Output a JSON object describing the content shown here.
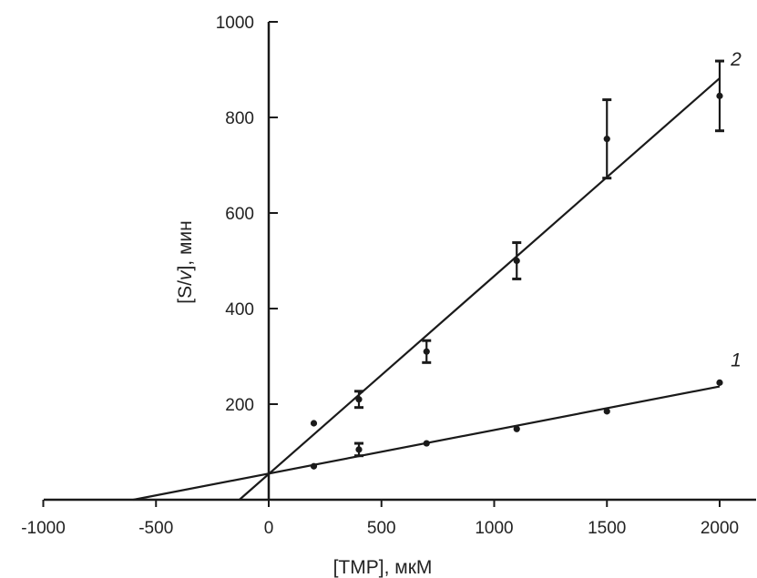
{
  "chart_data": {
    "type": "scatter",
    "xlabel": "[TMP], мкМ",
    "ylabel_parts": [
      "[S/",
      "v",
      "], мин"
    ],
    "xlim": [
      -1000,
      2150
    ],
    "ylim": [
      0,
      1000
    ],
    "xticks": [
      -1000,
      -500,
      0,
      500,
      1000,
      1500,
      2000
    ],
    "yticks": [
      200,
      400,
      600,
      800,
      1000
    ],
    "grid": false,
    "colors": {
      "ink": "#1a1a1a"
    },
    "series": [
      {
        "name": "1",
        "points": [
          {
            "x": 200,
            "y": 70
          },
          {
            "x": 200,
            "y": 160
          },
          {
            "x": 400,
            "y": 105,
            "err": 13
          },
          {
            "x": 700,
            "y": 118
          },
          {
            "x": 1100,
            "y": 148
          },
          {
            "x": 1500,
            "y": 185
          },
          {
            "x": 2000,
            "y": 245
          }
        ],
        "fit": {
          "x0": -600,
          "y0": 0,
          "x1": 2000,
          "y1": 237
        }
      },
      {
        "name": "2",
        "points": [
          {
            "x": 400,
            "y": 210,
            "err": 17
          },
          {
            "x": 700,
            "y": 310,
            "err": 23
          },
          {
            "x": 1100,
            "y": 500,
            "err": 38
          },
          {
            "x": 1500,
            "y": 755,
            "err": 82
          },
          {
            "x": 2000,
            "y": 845,
            "err": 73
          }
        ],
        "fit": {
          "x0": -130,
          "y0": 0,
          "x1": 2000,
          "y1": 882
        }
      }
    ]
  }
}
